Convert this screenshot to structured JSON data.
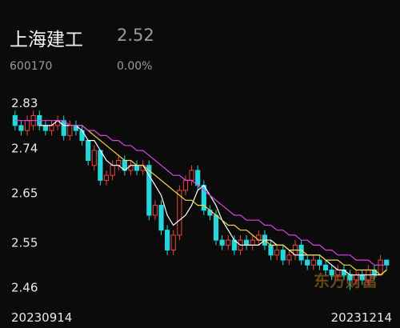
{
  "header": {
    "name": "上海建工",
    "price": "2.52",
    "code": "600170",
    "change": "0.00%"
  },
  "chart_data": {
    "type": "candlestick",
    "watermark": "东方财富",
    "categories": [
      "20230914",
      null,
      null,
      null,
      null,
      null,
      null,
      null,
      null,
      null,
      null,
      null,
      null,
      null,
      null,
      null,
      null,
      null,
      null,
      null,
      null,
      null,
      null,
      null,
      null,
      null,
      null,
      null,
      null,
      null,
      null,
      null,
      null,
      null,
      null,
      null,
      null,
      null,
      null,
      null,
      null,
      null,
      null,
      null,
      null,
      null,
      null,
      null,
      null,
      null,
      null,
      null,
      null,
      null,
      null,
      null,
      null,
      null,
      null,
      null,
      null,
      "20231214"
    ],
    "open": [
      2.82,
      2.8,
      2.79,
      2.8,
      2.82,
      2.8,
      2.79,
      2.8,
      2.81,
      2.78,
      2.8,
      2.79,
      2.77,
      2.72,
      2.75,
      2.69,
      2.7,
      2.72,
      2.73,
      2.71,
      2.72,
      2.71,
      2.72,
      2.62,
      2.64,
      2.59,
      2.55,
      2.58,
      2.67,
      2.69,
      2.71,
      2.68,
      2.63,
      2.62,
      2.57,
      2.56,
      2.57,
      2.55,
      2.57,
      2.56,
      2.57,
      2.58,
      2.56,
      2.54,
      2.55,
      2.53,
      2.54,
      2.56,
      2.53,
      2.52,
      2.53,
      2.52,
      2.51,
      2.5,
      2.51,
      2.5,
      2.49,
      2.5,
      2.49,
      2.51,
      2.5,
      2.53
    ],
    "high": [
      2.83,
      2.81,
      2.82,
      2.83,
      2.83,
      2.81,
      2.81,
      2.82,
      2.82,
      2.81,
      2.81,
      2.8,
      2.77,
      2.76,
      2.75,
      2.71,
      2.73,
      2.74,
      2.74,
      2.73,
      2.73,
      2.73,
      2.73,
      2.65,
      2.65,
      2.6,
      2.59,
      2.68,
      2.7,
      2.72,
      2.72,
      2.69,
      2.64,
      2.63,
      2.58,
      2.58,
      2.58,
      2.58,
      2.58,
      2.58,
      2.59,
      2.59,
      2.57,
      2.56,
      2.56,
      2.55,
      2.57,
      2.57,
      2.54,
      2.54,
      2.54,
      2.53,
      2.52,
      2.52,
      2.52,
      2.51,
      2.51,
      2.51,
      2.52,
      2.52,
      2.54,
      2.53
    ],
    "low": [
      2.79,
      2.78,
      2.78,
      2.79,
      2.79,
      2.78,
      2.78,
      2.79,
      2.77,
      2.77,
      2.78,
      2.76,
      2.72,
      2.71,
      2.68,
      2.68,
      2.69,
      2.71,
      2.7,
      2.7,
      2.7,
      2.7,
      2.61,
      2.61,
      2.58,
      2.54,
      2.54,
      2.57,
      2.66,
      2.68,
      2.67,
      2.62,
      2.61,
      2.56,
      2.55,
      2.55,
      2.54,
      2.54,
      2.55,
      2.55,
      2.56,
      2.55,
      2.53,
      2.53,
      2.52,
      2.52,
      2.53,
      2.52,
      2.51,
      2.51,
      2.51,
      2.5,
      2.49,
      2.49,
      2.49,
      2.47,
      2.48,
      2.48,
      2.48,
      2.49,
      2.5,
      2.51
    ],
    "close": [
      2.8,
      2.79,
      2.81,
      2.82,
      2.8,
      2.79,
      2.8,
      2.81,
      2.78,
      2.8,
      2.79,
      2.77,
      2.73,
      2.75,
      2.69,
      2.7,
      2.72,
      2.73,
      2.71,
      2.72,
      2.71,
      2.72,
      2.62,
      2.64,
      2.59,
      2.55,
      2.58,
      2.67,
      2.69,
      2.71,
      2.68,
      2.63,
      2.62,
      2.57,
      2.56,
      2.57,
      2.55,
      2.57,
      2.56,
      2.57,
      2.58,
      2.56,
      2.54,
      2.55,
      2.53,
      2.54,
      2.56,
      2.53,
      2.52,
      2.53,
      2.52,
      2.51,
      2.5,
      2.51,
      2.5,
      2.49,
      2.5,
      2.49,
      2.51,
      2.5,
      2.53,
      2.52
    ],
    "up_color": "#f0443c",
    "down_color": "#25d7dc",
    "flat_color": "#ffffff",
    "series": [
      {
        "color": "#ffffff",
        "values": [
          null,
          null,
          null,
          null,
          2.8,
          2.8,
          2.8,
          2.81,
          2.8,
          2.8,
          2.8,
          2.79,
          2.77,
          2.77,
          2.75,
          2.73,
          2.72,
          2.72,
          2.71,
          2.72,
          2.72,
          2.72,
          2.7,
          2.68,
          2.66,
          2.62,
          2.6,
          2.61,
          2.62,
          2.64,
          2.67,
          2.68,
          2.66,
          2.64,
          2.61,
          2.59,
          2.57,
          2.56,
          2.56,
          2.56,
          2.56,
          2.57,
          2.57,
          2.56,
          2.56,
          2.55,
          2.54,
          2.54,
          2.54,
          2.54,
          2.54,
          2.53,
          2.52,
          2.51,
          2.51,
          2.5,
          2.5,
          2.5,
          2.5,
          2.5,
          2.5,
          2.51
        ]
      },
      {
        "color": "#f2d64b",
        "values": [
          null,
          null,
          null,
          null,
          null,
          null,
          null,
          null,
          null,
          2.8,
          2.8,
          2.8,
          2.79,
          2.78,
          2.77,
          2.76,
          2.75,
          2.74,
          2.73,
          2.73,
          2.72,
          2.72,
          2.71,
          2.7,
          2.69,
          2.68,
          2.67,
          2.66,
          2.65,
          2.65,
          2.64,
          2.64,
          2.63,
          2.62,
          2.61,
          2.6,
          2.6,
          2.59,
          2.59,
          2.58,
          2.57,
          2.57,
          2.56,
          2.56,
          2.56,
          2.55,
          2.55,
          2.55,
          2.54,
          2.54,
          2.54,
          2.53,
          2.53,
          2.53,
          2.52,
          2.52,
          2.51,
          2.51,
          2.51,
          2.51,
          2.5,
          2.51
        ]
      },
      {
        "color": "#e040e8",
        "values": [
          2.81,
          2.81,
          2.81,
          2.81,
          2.81,
          2.81,
          2.81,
          2.81,
          2.81,
          2.8,
          2.8,
          2.8,
          2.79,
          2.79,
          2.78,
          2.78,
          2.77,
          2.77,
          2.76,
          2.76,
          2.75,
          2.75,
          2.74,
          2.73,
          2.72,
          2.71,
          2.7,
          2.7,
          2.69,
          2.69,
          2.68,
          2.67,
          2.66,
          2.65,
          2.64,
          2.63,
          2.62,
          2.62,
          2.61,
          2.61,
          2.61,
          2.6,
          2.6,
          2.59,
          2.59,
          2.58,
          2.58,
          2.57,
          2.57,
          2.56,
          2.56,
          2.55,
          2.55,
          2.54,
          2.54,
          2.54,
          2.53,
          2.53,
          2.53,
          2.52,
          2.52,
          2.52
        ]
      }
    ],
    "ylim": [
      2.445,
      2.84
    ],
    "yticks": [
      2.46,
      2.55,
      2.65,
      2.74,
      2.83
    ],
    "grid": false
  }
}
